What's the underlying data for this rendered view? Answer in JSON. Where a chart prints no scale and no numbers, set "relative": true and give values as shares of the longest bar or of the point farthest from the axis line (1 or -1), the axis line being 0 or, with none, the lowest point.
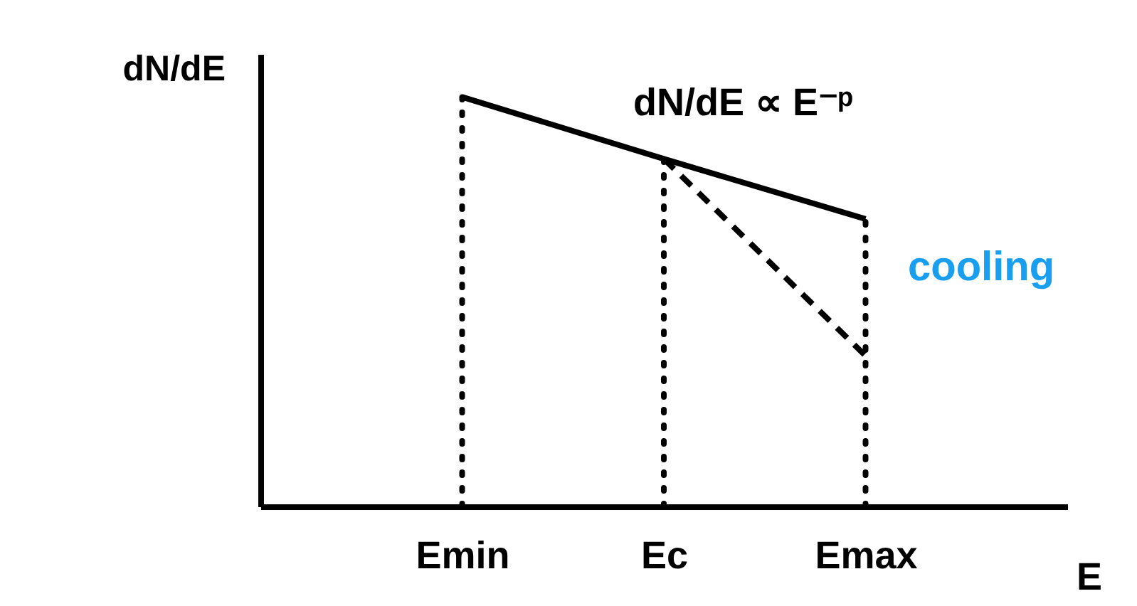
{
  "chart_data": {
    "type": "line",
    "relative": true,
    "xlabel": "E",
    "ylabel": "dN/dE",
    "categories": [
      "Emin",
      "Ec",
      "Emax"
    ],
    "series": [
      {
        "values": [
          1,
          0.849,
          0.702
        ],
        "color": "#000000",
        "line_style": "solid"
      },
      {
        "values": [
          null,
          0.849,
          0.368
        ],
        "color": "#000000",
        "line_style": "dashed"
      }
    ],
    "ref_lines": [
      {
        "axis": "x",
        "value": "Emin",
        "line_style": "dotted",
        "color": "#000000"
      },
      {
        "axis": "x",
        "value": "Ec",
        "line_style": "dotted",
        "color": "#000000"
      },
      {
        "axis": "x",
        "value": "Emax",
        "line_style": "dotted",
        "color": "#000000"
      }
    ],
    "annotations": [
      "dN/dE ∝ E⁻ᵖ",
      "cooling"
    ],
    "tick_labels": "x",
    "marker": "none"
  }
}
